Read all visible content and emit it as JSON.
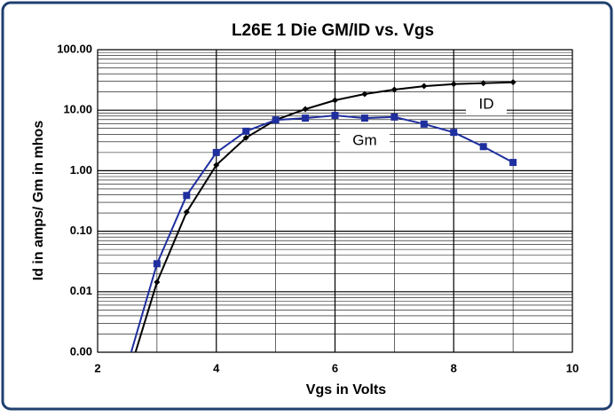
{
  "chart_data": {
    "type": "line",
    "title": "L26E 1 Die GM/ID vs. Vgs",
    "x_label": "Vgs  in Volts",
    "y_label": "Id in amps/ Gm in mhos",
    "annotations": [
      "ID",
      "Gm"
    ],
    "x": [
      2.5,
      3,
      3.5,
      4,
      4.5,
      5,
      5.5,
      6,
      6.5,
      7,
      7.5,
      8,
      8.5,
      9
    ],
    "series": [
      {
        "name": "ID",
        "color": "#000000",
        "marker": "diamond",
        "values": [
          0.00036,
          0.0144,
          0.207,
          1.24,
          3.5,
          6.9,
          10.4,
          14.6,
          18.5,
          21.9,
          25,
          27,
          28,
          29
        ]
      },
      {
        "name": "Gm",
        "color": "#1f2f9f",
        "marker": "square",
        "values": [
          0.0006,
          0.029,
          0.39,
          2.0,
          4.5,
          6.9,
          7.4,
          8.2,
          7.4,
          7.7,
          5.9,
          4.3,
          2.5,
          1.37
        ]
      }
    ],
    "xlim": [
      2,
      10
    ],
    "xticks": [
      2,
      4,
      6,
      8,
      10
    ],
    "ylim": [
      0.001,
      100
    ],
    "yticks": [
      {
        "value": 0.001,
        "label": "0.00"
      },
      {
        "value": 0.01,
        "label": "0.01"
      },
      {
        "value": 0.1,
        "label": "0.10"
      },
      {
        "value": 1,
        "label": "1.00"
      },
      {
        "value": 10,
        "label": "10.00"
      },
      {
        "value": 100,
        "label": "100.00"
      }
    ],
    "log_y": true,
    "grid": true,
    "minor_grid": true,
    "legend": false
  }
}
